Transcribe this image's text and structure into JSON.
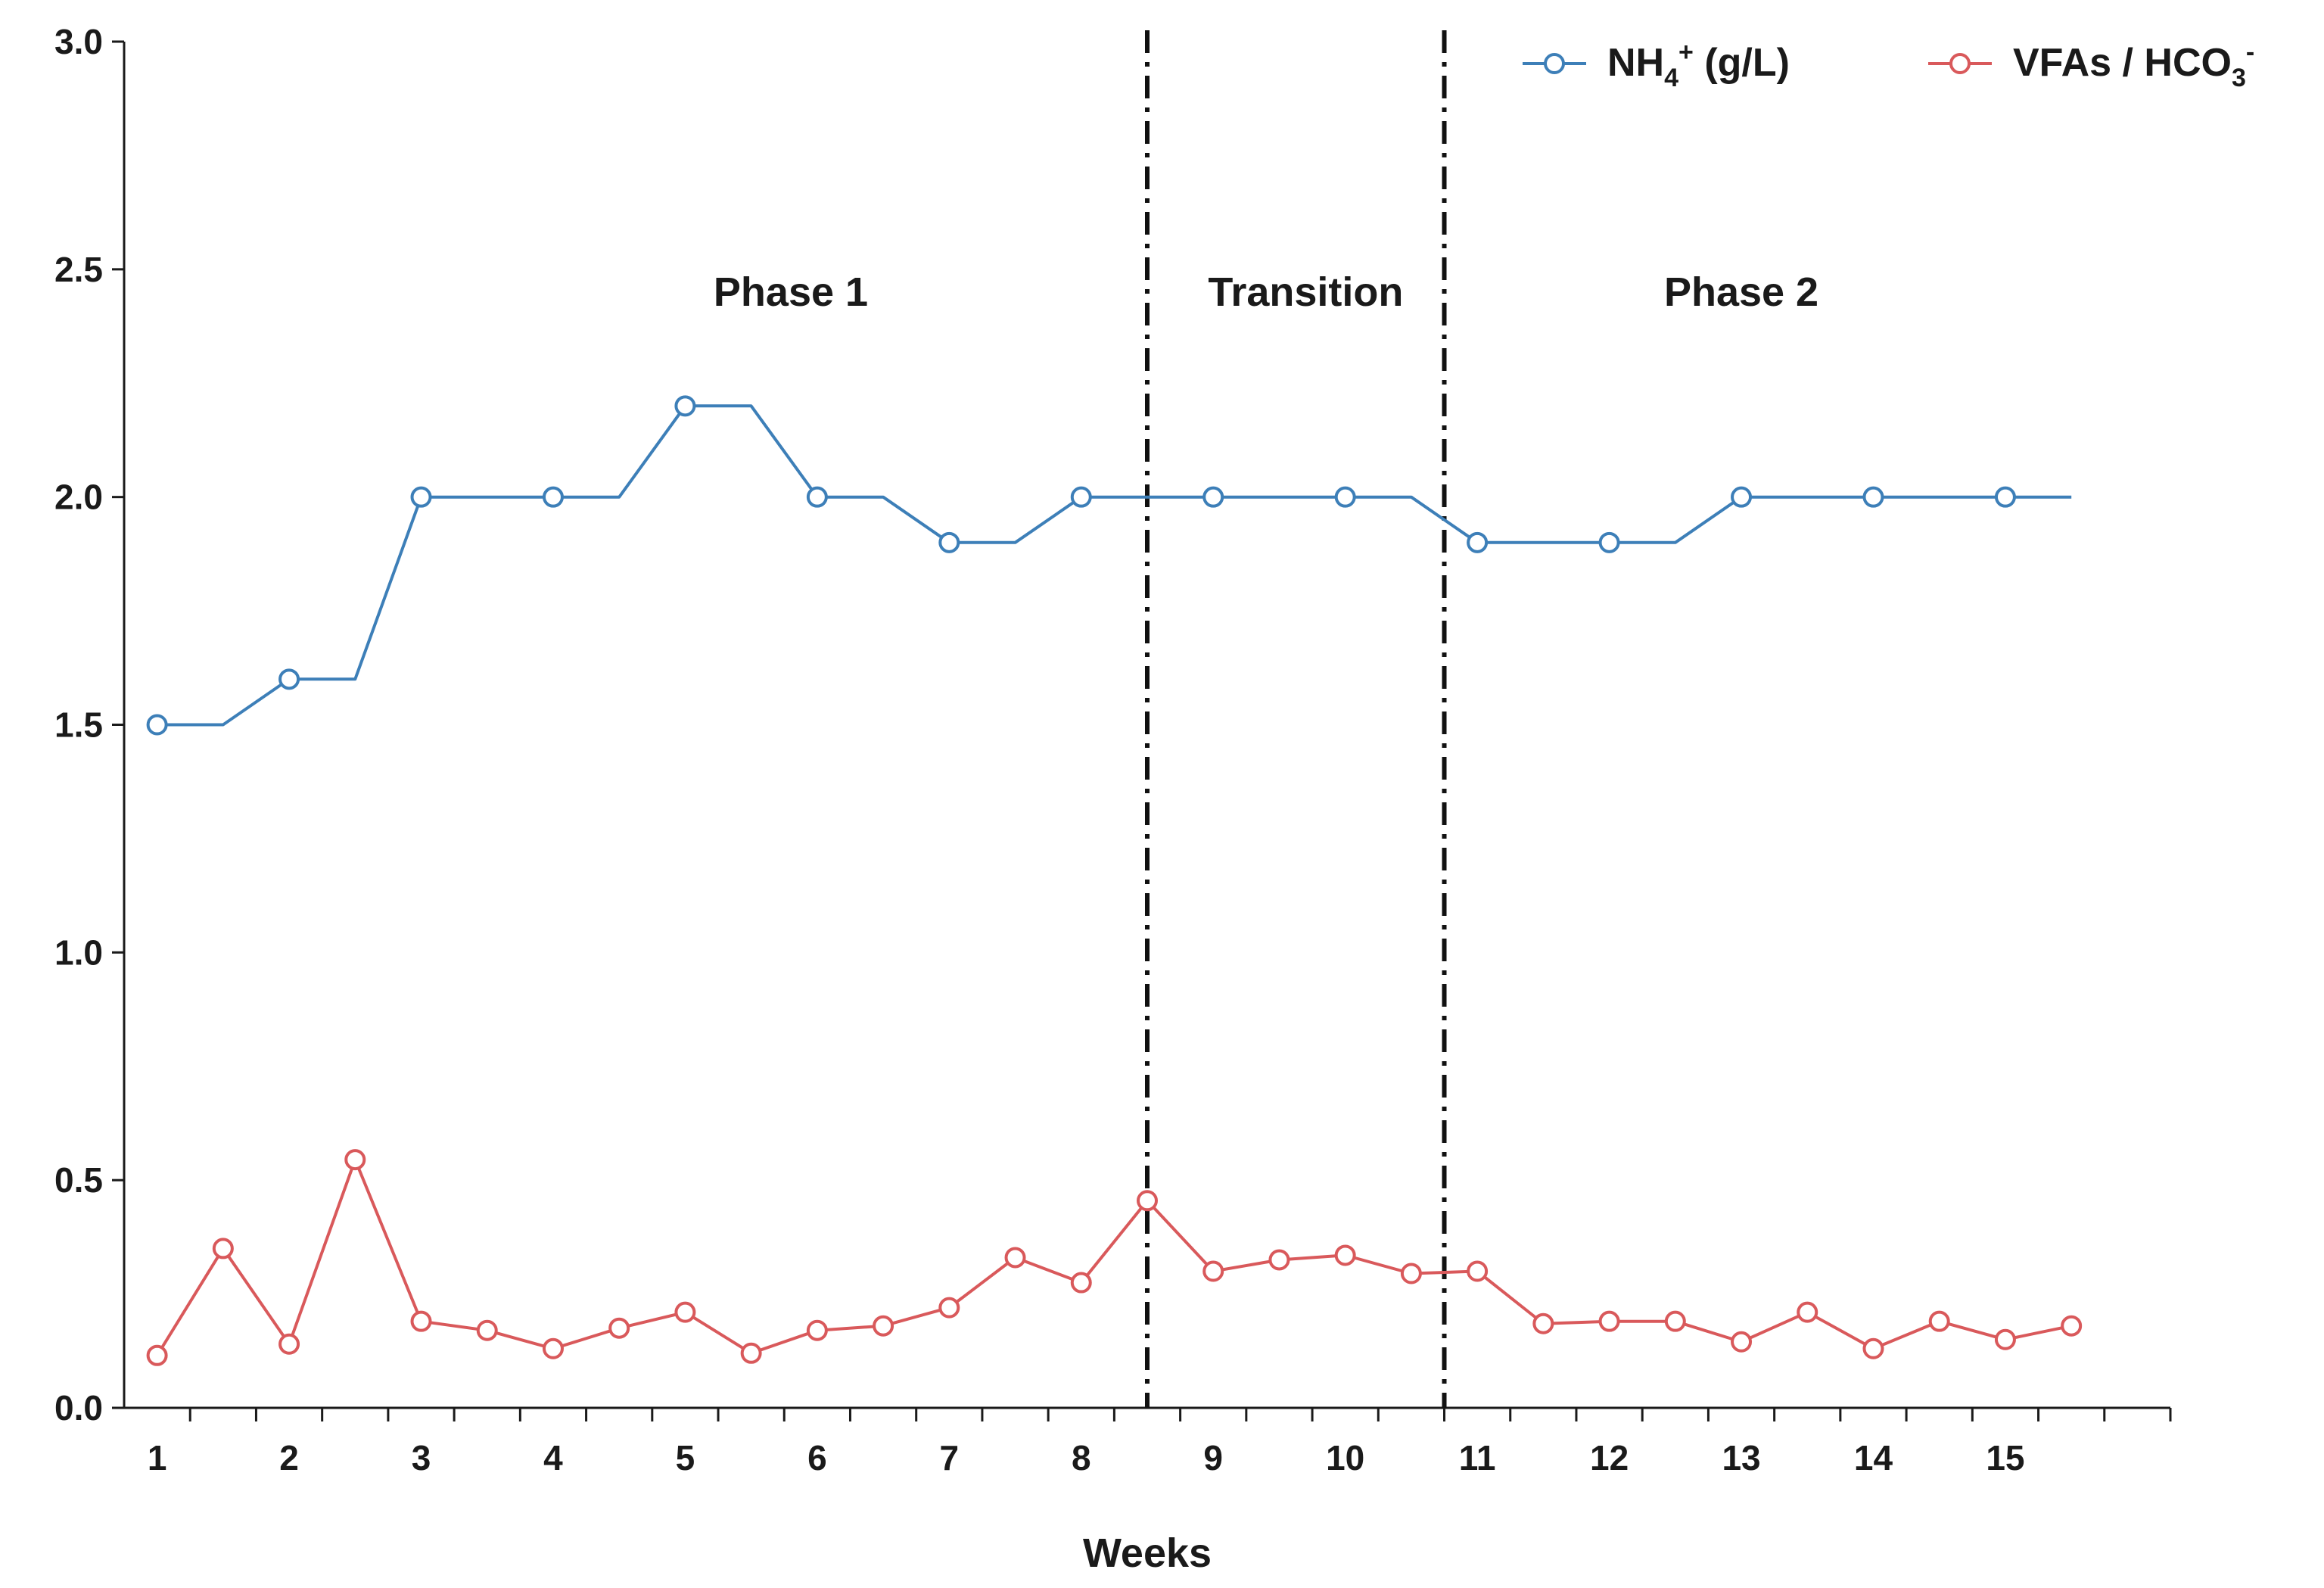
{
  "chart_data": {
    "type": "line",
    "title": "",
    "xlabel": "Weeks",
    "ylabel": "",
    "xlim": [
      0.75,
      16.25
    ],
    "ylim": [
      0,
      3.0
    ],
    "xticks": [
      1,
      2,
      3,
      4,
      5,
      6,
      7,
      8,
      9,
      10,
      11,
      12,
      13,
      14,
      15
    ],
    "yticks": [
      "0.0",
      "0.5",
      "1.0",
      "1.5",
      "2.0",
      "2.5",
      "3.0"
    ],
    "grid": false,
    "legend_position": "top-right",
    "phase_dividers": [
      8.5,
      10.75
    ],
    "phase_labels": [
      {
        "text": "Phase 1",
        "x": 5.8,
        "y": 2.42
      },
      {
        "text": "Transition",
        "x": 9.7,
        "y": 2.42
      },
      {
        "text": "Phase 2",
        "x": 13.0,
        "y": 2.42
      }
    ],
    "series": [
      {
        "name": "NH4+ (g/L)",
        "legend_main": "NH",
        "legend_sub": "4",
        "legend_sup": "+",
        "legend_tail": " (g/L)",
        "color": "#3d7fb8",
        "step": true,
        "x": [
          1,
          2,
          3,
          4,
          5,
          6,
          7,
          8,
          9,
          10,
          11,
          12,
          13,
          14,
          15
        ],
        "values": [
          1.5,
          1.6,
          2.0,
          2.0,
          2.2,
          2.0,
          1.9,
          2.0,
          2.0,
          2.0,
          1.9,
          1.9,
          2.0,
          2.0,
          2.0
        ],
        "x_end": 15.5
      },
      {
        "name": "VFAs / HCO3-",
        "legend_main": "VFAs / HCO",
        "legend_sub": "3",
        "legend_sup": "-",
        "legend_tail": "",
        "color": "#d9595b",
        "step": false,
        "x": [
          1,
          1.5,
          2,
          2.5,
          3,
          3.5,
          4,
          4.5,
          5,
          5.5,
          6,
          6.5,
          7,
          7.5,
          8,
          8.5,
          9,
          9.5,
          10,
          10.5,
          11,
          11.5,
          12,
          12.5,
          13,
          13.5,
          14,
          14.5,
          15,
          15.5
        ],
        "values": [
          0.115,
          0.35,
          0.14,
          0.545,
          0.19,
          0.17,
          0.13,
          0.175,
          0.21,
          0.12,
          0.17,
          0.18,
          0.22,
          0.33,
          0.275,
          0.455,
          0.3,
          0.325,
          0.335,
          0.295,
          0.3,
          0.185,
          0.19,
          0.19,
          0.145,
          0.21,
          0.13,
          0.19,
          0.15,
          0.18
        ],
        "x_end": 15.5
      }
    ]
  }
}
